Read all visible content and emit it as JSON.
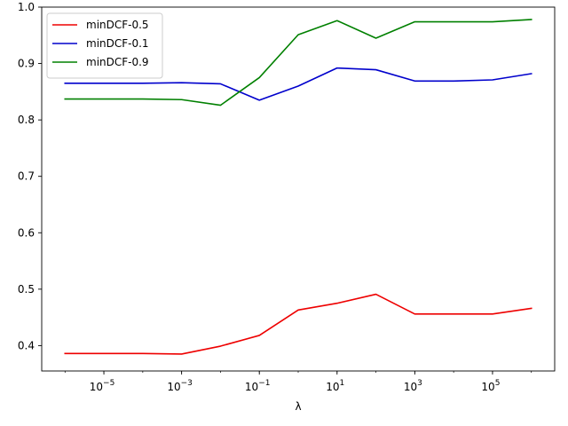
{
  "chart_data": {
    "type": "line",
    "title": "",
    "xlabel": "λ",
    "ylabel": "",
    "xscale": "log",
    "x": [
      1e-06,
      1e-05,
      0.0001,
      0.001,
      0.01,
      0.1,
      1,
      10,
      100,
      1000,
      10000,
      100000,
      1000000
    ],
    "xlim_exp": [
      -6.6,
      6.6
    ],
    "ylim": [
      0.355,
      1.0
    ],
    "x_ticks": [
      {
        "base": "10",
        "exp": "−5",
        "value": -5
      },
      {
        "base": "10",
        "exp": "−3",
        "value": -3
      },
      {
        "base": "10",
        "exp": "−1",
        "value": -1
      },
      {
        "base": "10",
        "exp": "1",
        "value": 1
      },
      {
        "base": "10",
        "exp": "3",
        "value": 3
      },
      {
        "base": "10",
        "exp": "5",
        "value": 5
      }
    ],
    "y_ticks": [
      {
        "label": "0.4",
        "value": 0.4
      },
      {
        "label": "0.5",
        "value": 0.5
      },
      {
        "label": "0.6",
        "value": 0.6
      },
      {
        "label": "0.7",
        "value": 0.7
      },
      {
        "label": "0.8",
        "value": 0.8
      },
      {
        "label": "0.9",
        "value": 0.9
      },
      {
        "label": "1.0",
        "value": 1.0
      }
    ],
    "legend_position": "top-left",
    "series": [
      {
        "name": "minDCF-0.5",
        "color": "#ee0000",
        "values": [
          0.386,
          0.386,
          0.386,
          0.385,
          0.399,
          0.418,
          0.463,
          0.475,
          0.491,
          0.456,
          0.456,
          0.456,
          0.466
        ]
      },
      {
        "name": "minDCF-0.1",
        "color": "#0000cc",
        "values": [
          0.865,
          0.865,
          0.865,
          0.866,
          0.864,
          0.835,
          0.86,
          0.892,
          0.889,
          0.869,
          0.869,
          0.871,
          0.882
        ]
      },
      {
        "name": "minDCF-0.9",
        "color": "#008000",
        "values": [
          0.837,
          0.837,
          0.837,
          0.836,
          0.826,
          0.875,
          0.951,
          0.976,
          0.945,
          0.974,
          0.974,
          0.974,
          0.978
        ]
      }
    ]
  }
}
